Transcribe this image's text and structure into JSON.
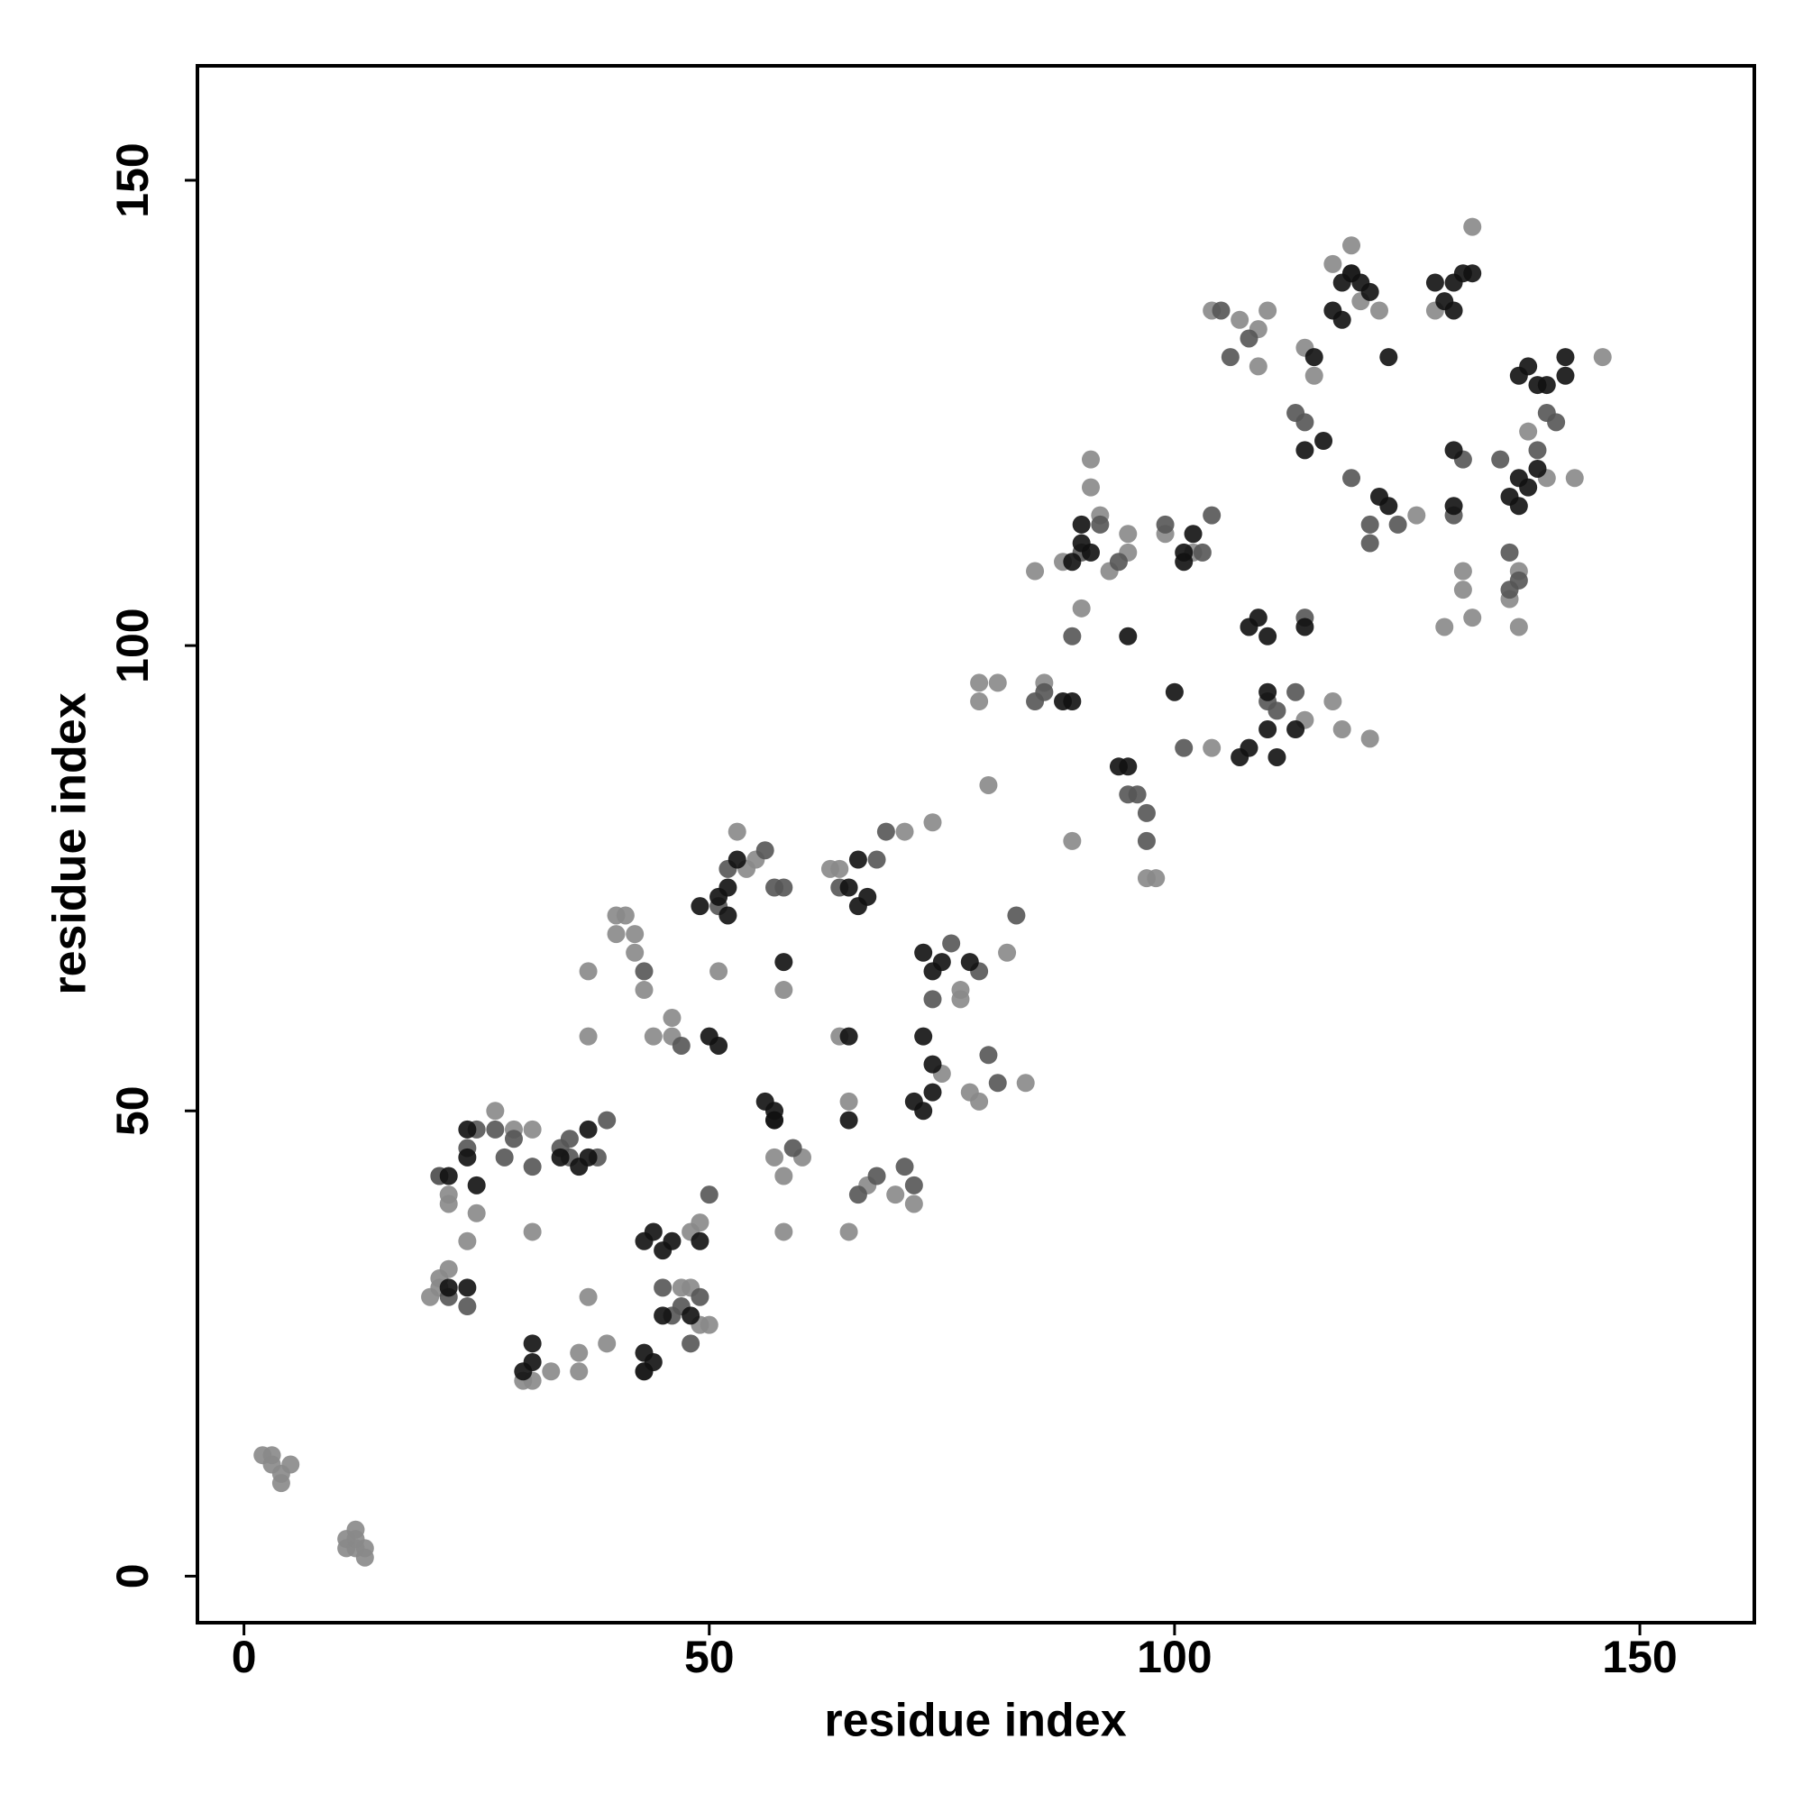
{
  "chart_data": {
    "type": "scatter",
    "x_label": "residue index",
    "y_label": "residue index",
    "xlim": [
      -5,
      162.3
    ],
    "ylim": [
      -5,
      162.3
    ],
    "xticks": [
      0,
      50,
      100,
      150
    ],
    "yticks": [
      0,
      50,
      100,
      150
    ],
    "series": [
      {
        "color": "#888888",
        "x": [
          2,
          3,
          4,
          3,
          5,
          4,
          11,
          12,
          12,
          13,
          13,
          11,
          12,
          20,
          21,
          21,
          22,
          22,
          21,
          22,
          24,
          25,
          27,
          29,
          31,
          31,
          30,
          31,
          33,
          36,
          36,
          37,
          37,
          37,
          39,
          40,
          40,
          41,
          42,
          42,
          43,
          43,
          44,
          46,
          46,
          47,
          48,
          48,
          49,
          50,
          49,
          51,
          53,
          54,
          55,
          57,
          58,
          58,
          58,
          60,
          63,
          64,
          64,
          65,
          65,
          67,
          70,
          72,
          71,
          74,
          75,
          77,
          77,
          78,
          79,
          79,
          79,
          80,
          81,
          82,
          84,
          85,
          86,
          88,
          89,
          90,
          91,
          91,
          92,
          93,
          95,
          95,
          98,
          97,
          99,
          102,
          104,
          104,
          107,
          109,
          109,
          110,
          114,
          117,
          118,
          121,
          114,
          115,
          117,
          119,
          119,
          120,
          122,
          126,
          128,
          129,
          131,
          131,
          132,
          132,
          136,
          137,
          137,
          138,
          140,
          143,
          146
        ],
        "values": [
          13,
          13,
          11,
          12,
          12,
          10,
          4,
          4,
          5,
          3,
          2,
          3,
          3,
          30,
          31,
          32,
          33,
          40,
          43,
          41,
          36,
          39,
          50,
          48,
          48,
          37,
          21,
          21,
          22,
          24,
          22,
          30,
          58,
          65,
          25,
          69,
          71,
          71,
          67,
          69,
          22,
          63,
          58,
          60,
          58,
          31,
          31,
          37,
          27,
          27,
          38,
          65,
          80,
          76,
          77,
          45,
          43,
          63,
          37,
          45,
          76,
          76,
          58,
          51,
          37,
          42,
          41,
          40,
          80,
          81,
          54,
          62,
          63,
          52,
          51,
          96,
          94,
          85,
          96,
          67,
          53,
          108,
          96,
          109,
          79,
          104,
          120,
          117,
          114,
          108,
          112,
          110,
          75,
          75,
          112,
          110,
          89,
          136,
          135,
          130,
          134,
          136,
          92,
          94,
          91,
          90,
          132,
          129,
          141,
          140,
          143,
          137,
          136,
          114,
          136,
          102,
          108,
          106,
          103,
          145,
          105,
          102,
          108,
          123,
          118,
          118,
          131
        ]
      },
      {
        "color": "#555555",
        "x": [
          21,
          22,
          24,
          24,
          25,
          27,
          28,
          29,
          31,
          34,
          35,
          35,
          38,
          39,
          43,
          45,
          46,
          47,
          47,
          48,
          49,
          50,
          51,
          52,
          56,
          57,
          58,
          57,
          59,
          64,
          66,
          68,
          68,
          69,
          71,
          72,
          74,
          76,
          79,
          80,
          81,
          83,
          85,
          86,
          89,
          90,
          92,
          94,
          95,
          96,
          97,
          97,
          99,
          101,
          103,
          104,
          105,
          106,
          108,
          110,
          111,
          113,
          114,
          113,
          114,
          119,
          121,
          121,
          124,
          130,
          131,
          135,
          136,
          136,
          137,
          139,
          141,
          140
        ],
        "values": [
          43,
          30,
          29,
          46,
          48,
          48,
          45,
          47,
          44,
          46,
          47,
          45,
          45,
          49,
          65,
          31,
          28,
          29,
          57,
          25,
          30,
          41,
          72,
          76,
          78,
          74,
          74,
          49,
          46,
          74,
          41,
          43,
          77,
          80,
          44,
          42,
          62,
          68,
          65,
          56,
          53,
          71,
          94,
          95,
          101,
          110,
          113,
          109,
          84,
          84,
          82,
          79,
          113,
          89,
          110,
          114,
          136,
          131,
          133,
          94,
          93,
          95,
          103,
          125,
          124,
          118,
          111,
          113,
          113,
          114,
          120,
          120,
          106,
          110,
          107,
          121,
          124,
          125
        ]
      },
      {
        "color": "#111111",
        "x": [
          22,
          22,
          24,
          24,
          25,
          24,
          30,
          31,
          31,
          34,
          36,
          37,
          37,
          43,
          43,
          44,
          43,
          44,
          45,
          45,
          46,
          48,
          49,
          49,
          50,
          51,
          52,
          51,
          52,
          53,
          56,
          57,
          57,
          58,
          65,
          66,
          66,
          67,
          65,
          65,
          72,
          73,
          73,
          74,
          74,
          73,
          74,
          75,
          78,
          88,
          89,
          89,
          90,
          90,
          91,
          94,
          95,
          95,
          100,
          101,
          101,
          102,
          107,
          108,
          108,
          109,
          110,
          110,
          110,
          111,
          114,
          113,
          114,
          116,
          115,
          117,
          118,
          118,
          119,
          120,
          121,
          122,
          123,
          123,
          128,
          129,
          130,
          130,
          130,
          130,
          131,
          132,
          136,
          137,
          137,
          138,
          137,
          138,
          139,
          139,
          140,
          142,
          142
        ],
        "values": [
          43,
          31,
          31,
          45,
          42,
          48,
          22,
          23,
          25,
          45,
          44,
          45,
          48,
          24,
          22,
          23,
          36,
          37,
          35,
          28,
          36,
          28,
          36,
          72,
          58,
          57,
          71,
          73,
          74,
          77,
          51,
          50,
          49,
          66,
          74,
          72,
          77,
          73,
          49,
          58,
          51,
          50,
          58,
          52,
          55,
          67,
          65,
          66,
          66,
          94,
          94,
          109,
          111,
          113,
          110,
          87,
          87,
          101,
          95,
          109,
          110,
          112,
          88,
          89,
          102,
          103,
          101,
          95,
          91,
          88,
          102,
          91,
          121,
          122,
          131,
          136,
          135,
          139,
          140,
          139,
          138,
          116,
          115,
          131,
          139,
          137,
          139,
          121,
          115,
          136,
          140,
          140,
          116,
          115,
          118,
          117,
          129,
          130,
          128,
          119,
          128,
          129,
          131
        ]
      }
    ]
  }
}
